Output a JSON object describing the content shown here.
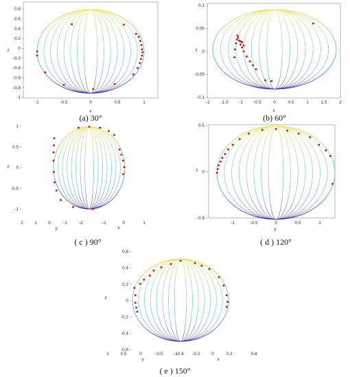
{
  "chart_data": [
    {
      "type": "scatter",
      "view": "sphere-3d",
      "caption": "(a) 30°",
      "xlabel": "x",
      "ylabel": "z",
      "xticks": [
        "-1",
        "-0.5",
        "0",
        "0.5",
        "1"
      ],
      "yticks": [
        "0.8",
        "0.6",
        "0.4",
        "0.2",
        "0",
        "-0.2",
        "-0.4",
        "-0.6",
        "-0.8",
        "-1"
      ],
      "xlim": [
        -1.2,
        1.2
      ],
      "ylim": [
        -1,
        0.9
      ],
      "points": [
        [
          -0.35,
          0.65
        ],
        [
          0.62,
          0.64
        ],
        [
          0.85,
          0.42
        ],
        [
          0.9,
          0.35
        ],
        [
          0.93,
          0.25
        ],
        [
          0.95,
          0.15
        ],
        [
          0.96,
          0.05
        ],
        [
          0.97,
          -0.02
        ],
        [
          0.96,
          -0.1
        ],
        [
          0.94,
          -0.18
        ],
        [
          0.92,
          -0.28
        ],
        [
          0.88,
          -0.4
        ],
        [
          0.8,
          -0.55
        ],
        [
          0.45,
          -0.78
        ],
        [
          0.05,
          -0.9
        ],
        [
          -0.5,
          -0.8
        ],
        [
          -0.85,
          -0.5
        ],
        [
          -1.0,
          -0.1
        ],
        [
          -1.0,
          0.0
        ]
      ]
    },
    {
      "type": "scatter",
      "view": "sphere-3d",
      "caption": "(b) 60°",
      "xlabel": "x",
      "ylabel": "z",
      "xticks": [
        "-2",
        "-1.5",
        "-1",
        "-0.5",
        "0",
        "0.5",
        "1",
        "1.5",
        "2"
      ],
      "yticks": [
        "0.1",
        "0.05",
        "0",
        "-0.05",
        "-0.1"
      ],
      "xlim": [
        -2,
        2
      ],
      "ylim": [
        -0.1,
        0.1
      ],
      "points": [
        [
          1.25,
          0.065
        ],
        [
          -1.3,
          -0.02
        ],
        [
          -1.28,
          0.0
        ],
        [
          -1.25,
          0.015
        ],
        [
          -1.22,
          0.025
        ],
        [
          -1.2,
          0.035
        ],
        [
          -1.18,
          0.03
        ],
        [
          -1.15,
          0.022
        ],
        [
          -1.1,
          0.012
        ],
        [
          -1.05,
          0.005
        ],
        [
          -1.0,
          -0.005
        ],
        [
          -0.9,
          -0.018
        ],
        [
          -0.8,
          -0.03
        ],
        [
          -0.7,
          -0.04
        ],
        [
          -0.6,
          -0.05
        ],
        [
          -1.1,
          0.02
        ],
        [
          -1.05,
          0.018
        ],
        [
          -1.0,
          0.01
        ],
        [
          -0.1,
          -0.08
        ],
        [
          -0.3,
          -0.078
        ]
      ]
    },
    {
      "type": "scatter",
      "view": "sphere-3d",
      "caption": "( c ) 90°",
      "xlabel": "x",
      "ylabel": "z",
      "zlabel": "y",
      "xticks": [
        "2",
        "1",
        "0",
        "-1",
        "-2",
        "-1",
        "0",
        "1"
      ],
      "yticks": [
        "1",
        "0.5",
        "0",
        "-0.5",
        "-1"
      ],
      "ylim": [
        -1,
        1
      ],
      "points": [
        [
          -0.98,
          0.72
        ],
        [
          -0.99,
          0.55
        ],
        [
          -1.0,
          0.38
        ],
        [
          -1.0,
          0.18
        ],
        [
          -0.99,
          -0.1
        ],
        [
          -0.97,
          -0.35
        ],
        [
          -0.92,
          -0.55
        ],
        [
          -0.8,
          -0.78
        ],
        [
          -0.45,
          -0.95
        ],
        [
          0.1,
          -1.0
        ],
        [
          0.85,
          0.45
        ],
        [
          0.9,
          0.32
        ],
        [
          0.95,
          0.18
        ],
        [
          0.98,
          0.02
        ],
        [
          0.95,
          -0.15
        ],
        [
          -0.3,
          0.98
        ],
        [
          0.0,
          1.0
        ],
        [
          0.3,
          0.98
        ],
        [
          0.55,
          0.9
        ],
        [
          0.7,
          0.8
        ]
      ]
    },
    {
      "type": "scatter",
      "view": "sphere-3d",
      "caption": "( d ) 120°",
      "xlabel": "y",
      "ylabel": "z",
      "xticks": [
        "-1",
        "-0.5",
        "0",
        "0.5",
        "1"
      ],
      "yticks": [
        "0.5",
        "0",
        "-0.5"
      ],
      "ylim": [
        -0.5,
        0.5
      ],
      "points": [
        [
          -1.3,
          0.0
        ],
        [
          -1.28,
          0.04
        ],
        [
          -1.26,
          0.08
        ],
        [
          -1.22,
          0.12
        ],
        [
          -1.18,
          0.16
        ],
        [
          -1.12,
          0.2
        ],
        [
          -1.05,
          0.25
        ],
        [
          -0.95,
          0.3
        ],
        [
          -0.8,
          0.36
        ],
        [
          -0.6,
          0.42
        ],
        [
          -0.3,
          0.46
        ],
        [
          0.0,
          0.47
        ],
        [
          0.25,
          0.45
        ],
        [
          0.5,
          0.42
        ],
        [
          0.75,
          0.38
        ],
        [
          0.95,
          0.3
        ],
        [
          1.1,
          0.24
        ],
        [
          1.2,
          0.18
        ],
        [
          1.25,
          -0.12
        ]
      ]
    },
    {
      "type": "scatter",
      "view": "sphere-3d",
      "caption": "( e ) 150°",
      "xlabel": "x",
      "ylabel": "z",
      "zlabel": "y",
      "xticks": [
        "1",
        "0.5",
        "0",
        "-0.5",
        "-1",
        "-0.4",
        "-0.2",
        "0",
        "0.2",
        "0.4"
      ],
      "yticks": [
        "0.6",
        "0.4",
        "0.2",
        "0",
        "-0.2",
        "-0.4",
        "-0.6"
      ],
      "ylim": [
        -0.6,
        0.6
      ],
      "points": [
        [
          -0.48,
          0.15
        ],
        [
          -0.47,
          0.06
        ],
        [
          -0.47,
          -0.03
        ],
        [
          -0.46,
          -0.09
        ],
        [
          -0.45,
          -0.14
        ],
        [
          -0.42,
          0.2
        ],
        [
          -0.38,
          0.25
        ],
        [
          -0.32,
          0.3
        ],
        [
          -0.2,
          0.4
        ],
        [
          0.0,
          0.48
        ],
        [
          0.15,
          0.45
        ],
        [
          0.3,
          0.38
        ],
        [
          0.4,
          0.28
        ],
        [
          0.45,
          0.18
        ],
        [
          0.48,
          0.06
        ],
        [
          0.49,
          -0.02
        ],
        [
          0.48,
          -0.08
        ],
        [
          -0.28,
          0.36
        ],
        [
          -0.1,
          0.44
        ],
        [
          0.22,
          0.42
        ]
      ]
    }
  ]
}
